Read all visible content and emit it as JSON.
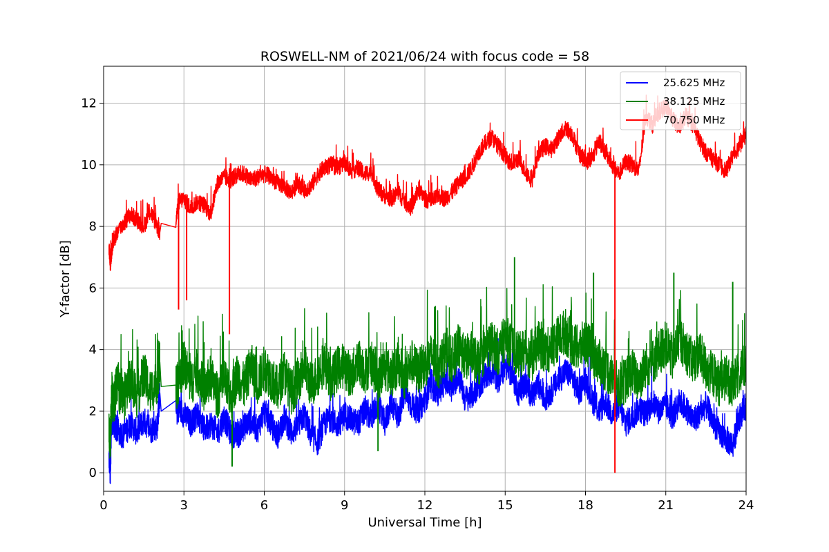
{
  "chart_data": {
    "type": "line",
    "title": "ROSWELL-NM of 2021/06/24 with focus code = 58",
    "xlabel": "Universal Time [h]",
    "ylabel": "Y-factor [dB]",
    "xlim": [
      0,
      24
    ],
    "ylim": [
      -0.6,
      13.2
    ],
    "xticks": [
      0,
      3,
      6,
      9,
      12,
      15,
      18,
      21,
      24
    ],
    "yticks": [
      0,
      2,
      4,
      6,
      8,
      10,
      12
    ],
    "grid": true,
    "legend_position": "top-right",
    "series": [
      {
        "name": "25.625 MHz",
        "color": "#0000ff",
        "x": [
          0.2,
          0.25,
          0.3,
          0.35,
          0.5,
          0.75,
          1.0,
          1.25,
          1.5,
          1.75,
          2.0,
          2.1,
          2.15,
          2.7,
          2.8,
          3.0,
          3.25,
          3.5,
          3.75,
          4.0,
          4.25,
          4.5,
          4.75,
          5.0,
          5.25,
          5.5,
          5.75,
          6.0,
          6.25,
          6.5,
          6.75,
          7.0,
          7.25,
          7.5,
          7.75,
          8.0,
          8.25,
          8.5,
          8.75,
          9.0,
          9.25,
          9.5,
          9.75,
          10.0,
          10.25,
          10.5,
          10.75,
          11.0,
          11.25,
          11.5,
          11.75,
          12.0,
          12.25,
          12.5,
          12.75,
          13.0,
          13.25,
          13.5,
          13.75,
          14.0,
          14.25,
          14.5,
          14.75,
          15.0,
          15.25,
          15.5,
          15.75,
          16.0,
          16.25,
          16.5,
          16.75,
          17.0,
          17.25,
          17.5,
          17.75,
          18.0,
          18.25,
          18.5,
          18.75,
          19.0,
          19.25,
          19.5,
          19.75,
          20.0,
          20.25,
          20.5,
          20.75,
          21.0,
          21.25,
          21.5,
          21.75,
          22.0,
          22.25,
          22.5,
          22.75,
          23.0,
          23.25,
          23.5,
          23.75,
          24.0
        ],
        "values": [
          0.5,
          0.0,
          1.8,
          1.6,
          1.4,
          1.2,
          1.6,
          1.3,
          1.7,
          1.4,
          1.5,
          2.6,
          2.0,
          1.9,
          2.1,
          1.9,
          1.6,
          1.9,
          1.4,
          1.6,
          1.3,
          1.8,
          1.3,
          1.2,
          1.5,
          1.7,
          1.4,
          2.0,
          1.6,
          1.2,
          1.8,
          1.3,
          1.5,
          1.9,
          1.2,
          1.0,
          1.6,
          1.8,
          1.5,
          1.9,
          1.7,
          1.6,
          2.0,
          1.8,
          2.2,
          1.6,
          2.3,
          1.8,
          2.6,
          2.2,
          2.0,
          2.4,
          2.8,
          2.6,
          3.0,
          2.7,
          3.2,
          2.4,
          2.5,
          2.8,
          3.1,
          3.3,
          3.0,
          3.5,
          3.2,
          2.6,
          2.9,
          2.5,
          2.8,
          2.4,
          2.7,
          3.0,
          3.3,
          3.1,
          2.6,
          3.0,
          2.4,
          2.0,
          2.3,
          1.9,
          2.2,
          1.6,
          1.8,
          2.1,
          1.9,
          2.3,
          2.0,
          2.2,
          1.8,
          2.3,
          2.1,
          1.7,
          1.9,
          2.2,
          1.7,
          1.3,
          1.1,
          0.9,
          1.8,
          2.2
        ]
      },
      {
        "name": "38.125 MHz",
        "color": "#008000",
        "x": [
          0.2,
          0.25,
          0.3,
          0.35,
          0.5,
          0.75,
          1.0,
          1.25,
          1.5,
          1.75,
          2.0,
          2.1,
          2.15,
          2.7,
          2.8,
          3.0,
          3.25,
          3.5,
          3.75,
          4.0,
          4.25,
          4.5,
          4.75,
          5.0,
          5.25,
          5.5,
          5.75,
          6.0,
          6.25,
          6.5,
          6.75,
          7.0,
          7.25,
          7.5,
          7.75,
          8.0,
          8.25,
          8.5,
          8.75,
          9.0,
          9.25,
          9.5,
          9.75,
          10.0,
          10.25,
          10.5,
          10.75,
          11.0,
          11.25,
          11.5,
          11.75,
          12.0,
          12.25,
          12.5,
          12.75,
          13.0,
          13.25,
          13.5,
          13.75,
          14.0,
          14.25,
          14.5,
          14.75,
          15.0,
          15.25,
          15.5,
          15.75,
          16.0,
          16.25,
          16.5,
          16.75,
          17.0,
          17.25,
          17.5,
          17.75,
          18.0,
          18.25,
          18.5,
          18.75,
          19.0,
          19.25,
          19.5,
          19.75,
          20.0,
          20.25,
          20.5,
          20.75,
          21.0,
          21.25,
          21.5,
          21.75,
          22.0,
          22.25,
          22.5,
          22.75,
          23.0,
          23.25,
          23.5,
          23.75,
          24.0
        ],
        "values": [
          1.6,
          0.9,
          2.6,
          2.2,
          2.8,
          2.4,
          3.1,
          2.5,
          3.2,
          2.6,
          3.0,
          3.6,
          2.8,
          2.7,
          3.0,
          3.6,
          2.9,
          3.3,
          2.7,
          3.1,
          2.5,
          3.0,
          2.4,
          3.2,
          2.8,
          3.5,
          2.9,
          3.4,
          3.1,
          2.7,
          3.3,
          2.6,
          3.0,
          3.5,
          2.8,
          3.2,
          3.6,
          3.0,
          3.4,
          3.5,
          3.1,
          3.7,
          3.3,
          3.6,
          3.0,
          3.4,
          3.2,
          3.5,
          3.1,
          3.6,
          3.3,
          3.5,
          3.8,
          3.4,
          3.9,
          3.6,
          4.1,
          3.7,
          3.9,
          3.5,
          4.0,
          4.2,
          3.9,
          4.4,
          4.1,
          3.8,
          4.0,
          3.7,
          4.2,
          3.9,
          4.1,
          4.4,
          4.6,
          4.2,
          4.0,
          4.3,
          3.9,
          3.6,
          3.4,
          3.1,
          2.8,
          3.0,
          3.3,
          3.0,
          3.5,
          3.6,
          3.9,
          4.2,
          3.7,
          4.4,
          4.0,
          3.6,
          3.9,
          3.4,
          3.2,
          2.9,
          3.1,
          2.8,
          3.3,
          3.5
        ]
      },
      {
        "name": "70.750 MHz",
        "color": "#ff0000",
        "x": [
          0.2,
          0.25,
          0.3,
          0.35,
          0.5,
          0.75,
          1.0,
          1.25,
          1.5,
          1.75,
          2.0,
          2.1,
          2.15,
          2.7,
          2.8,
          3.0,
          3.25,
          3.5,
          3.75,
          4.0,
          4.25,
          4.5,
          4.75,
          5.0,
          5.25,
          5.5,
          5.75,
          6.0,
          6.25,
          6.5,
          6.75,
          7.0,
          7.25,
          7.5,
          7.75,
          8.0,
          8.25,
          8.5,
          8.75,
          9.0,
          9.25,
          9.5,
          9.75,
          10.0,
          10.25,
          10.5,
          10.75,
          11.0,
          11.25,
          11.5,
          11.75,
          12.0,
          12.25,
          12.5,
          12.75,
          13.0,
          13.25,
          13.5,
          13.75,
          14.0,
          14.25,
          14.5,
          14.75,
          15.0,
          15.25,
          15.5,
          15.75,
          16.0,
          16.25,
          16.5,
          16.75,
          17.0,
          17.25,
          17.5,
          17.75,
          18.0,
          18.25,
          18.5,
          18.75,
          19.0,
          19.25,
          19.5,
          19.75,
          20.0,
          20.25,
          20.5,
          20.75,
          21.0,
          21.25,
          21.5,
          21.75,
          22.0,
          22.25,
          22.5,
          22.75,
          23.0,
          23.25,
          23.5,
          23.75,
          24.0
        ],
        "values": [
          7.3,
          6.8,
          7.2,
          7.5,
          7.8,
          8.1,
          8.4,
          8.2,
          8.0,
          8.5,
          8.0,
          7.8,
          8.1,
          8.2,
          8.8,
          8.9,
          8.6,
          8.8,
          8.7,
          8.4,
          9.4,
          9.6,
          9.5,
          9.7,
          9.7,
          9.5,
          9.6,
          9.7,
          9.6,
          9.4,
          9.3,
          9.1,
          9.4,
          9.2,
          9.3,
          9.7,
          9.9,
          10.0,
          9.9,
          10.1,
          9.8,
          9.9,
          9.7,
          9.8,
          9.2,
          9.0,
          8.9,
          9.1,
          8.8,
          8.6,
          9.2,
          8.9,
          8.8,
          9.0,
          8.9,
          9.1,
          9.4,
          9.6,
          9.9,
          10.4,
          10.7,
          10.9,
          10.6,
          10.3,
          10.0,
          10.2,
          9.8,
          9.5,
          10.4,
          10.6,
          10.5,
          10.9,
          11.2,
          11.0,
          10.4,
          10.1,
          10.2,
          10.8,
          10.4,
          10.0,
          9.7,
          10.1,
          10.0,
          9.8,
          11.6,
          11.3,
          11.7,
          11.9,
          11.5,
          11.2,
          11.6,
          11.3,
          10.8,
          10.4,
          10.2,
          10.0,
          9.8,
          10.3,
          10.6,
          11.0
        ]
      }
    ],
    "spikes": [
      {
        "series": "70.750 MHz",
        "x": 2.8,
        "y": 5.3
      },
      {
        "series": "70.750 MHz",
        "x": 3.1,
        "y": 5.6
      },
      {
        "series": "70.750 MHz",
        "x": 4.7,
        "y": 4.5
      },
      {
        "series": "70.750 MHz",
        "x": 19.1,
        "y": 0.0
      },
      {
        "series": "38.125 MHz",
        "x": 15.35,
        "y": 7.0
      },
      {
        "series": "38.125 MHz",
        "x": 4.8,
        "y": 0.2
      },
      {
        "series": "38.125 MHz",
        "x": 10.25,
        "y": 0.7
      },
      {
        "series": "38.125 MHz",
        "x": 18.3,
        "y": 6.5
      },
      {
        "series": "38.125 MHz",
        "x": 21.3,
        "y": 6.5
      },
      {
        "series": "38.125 MHz",
        "x": 23.5,
        "y": 6.2
      }
    ]
  }
}
